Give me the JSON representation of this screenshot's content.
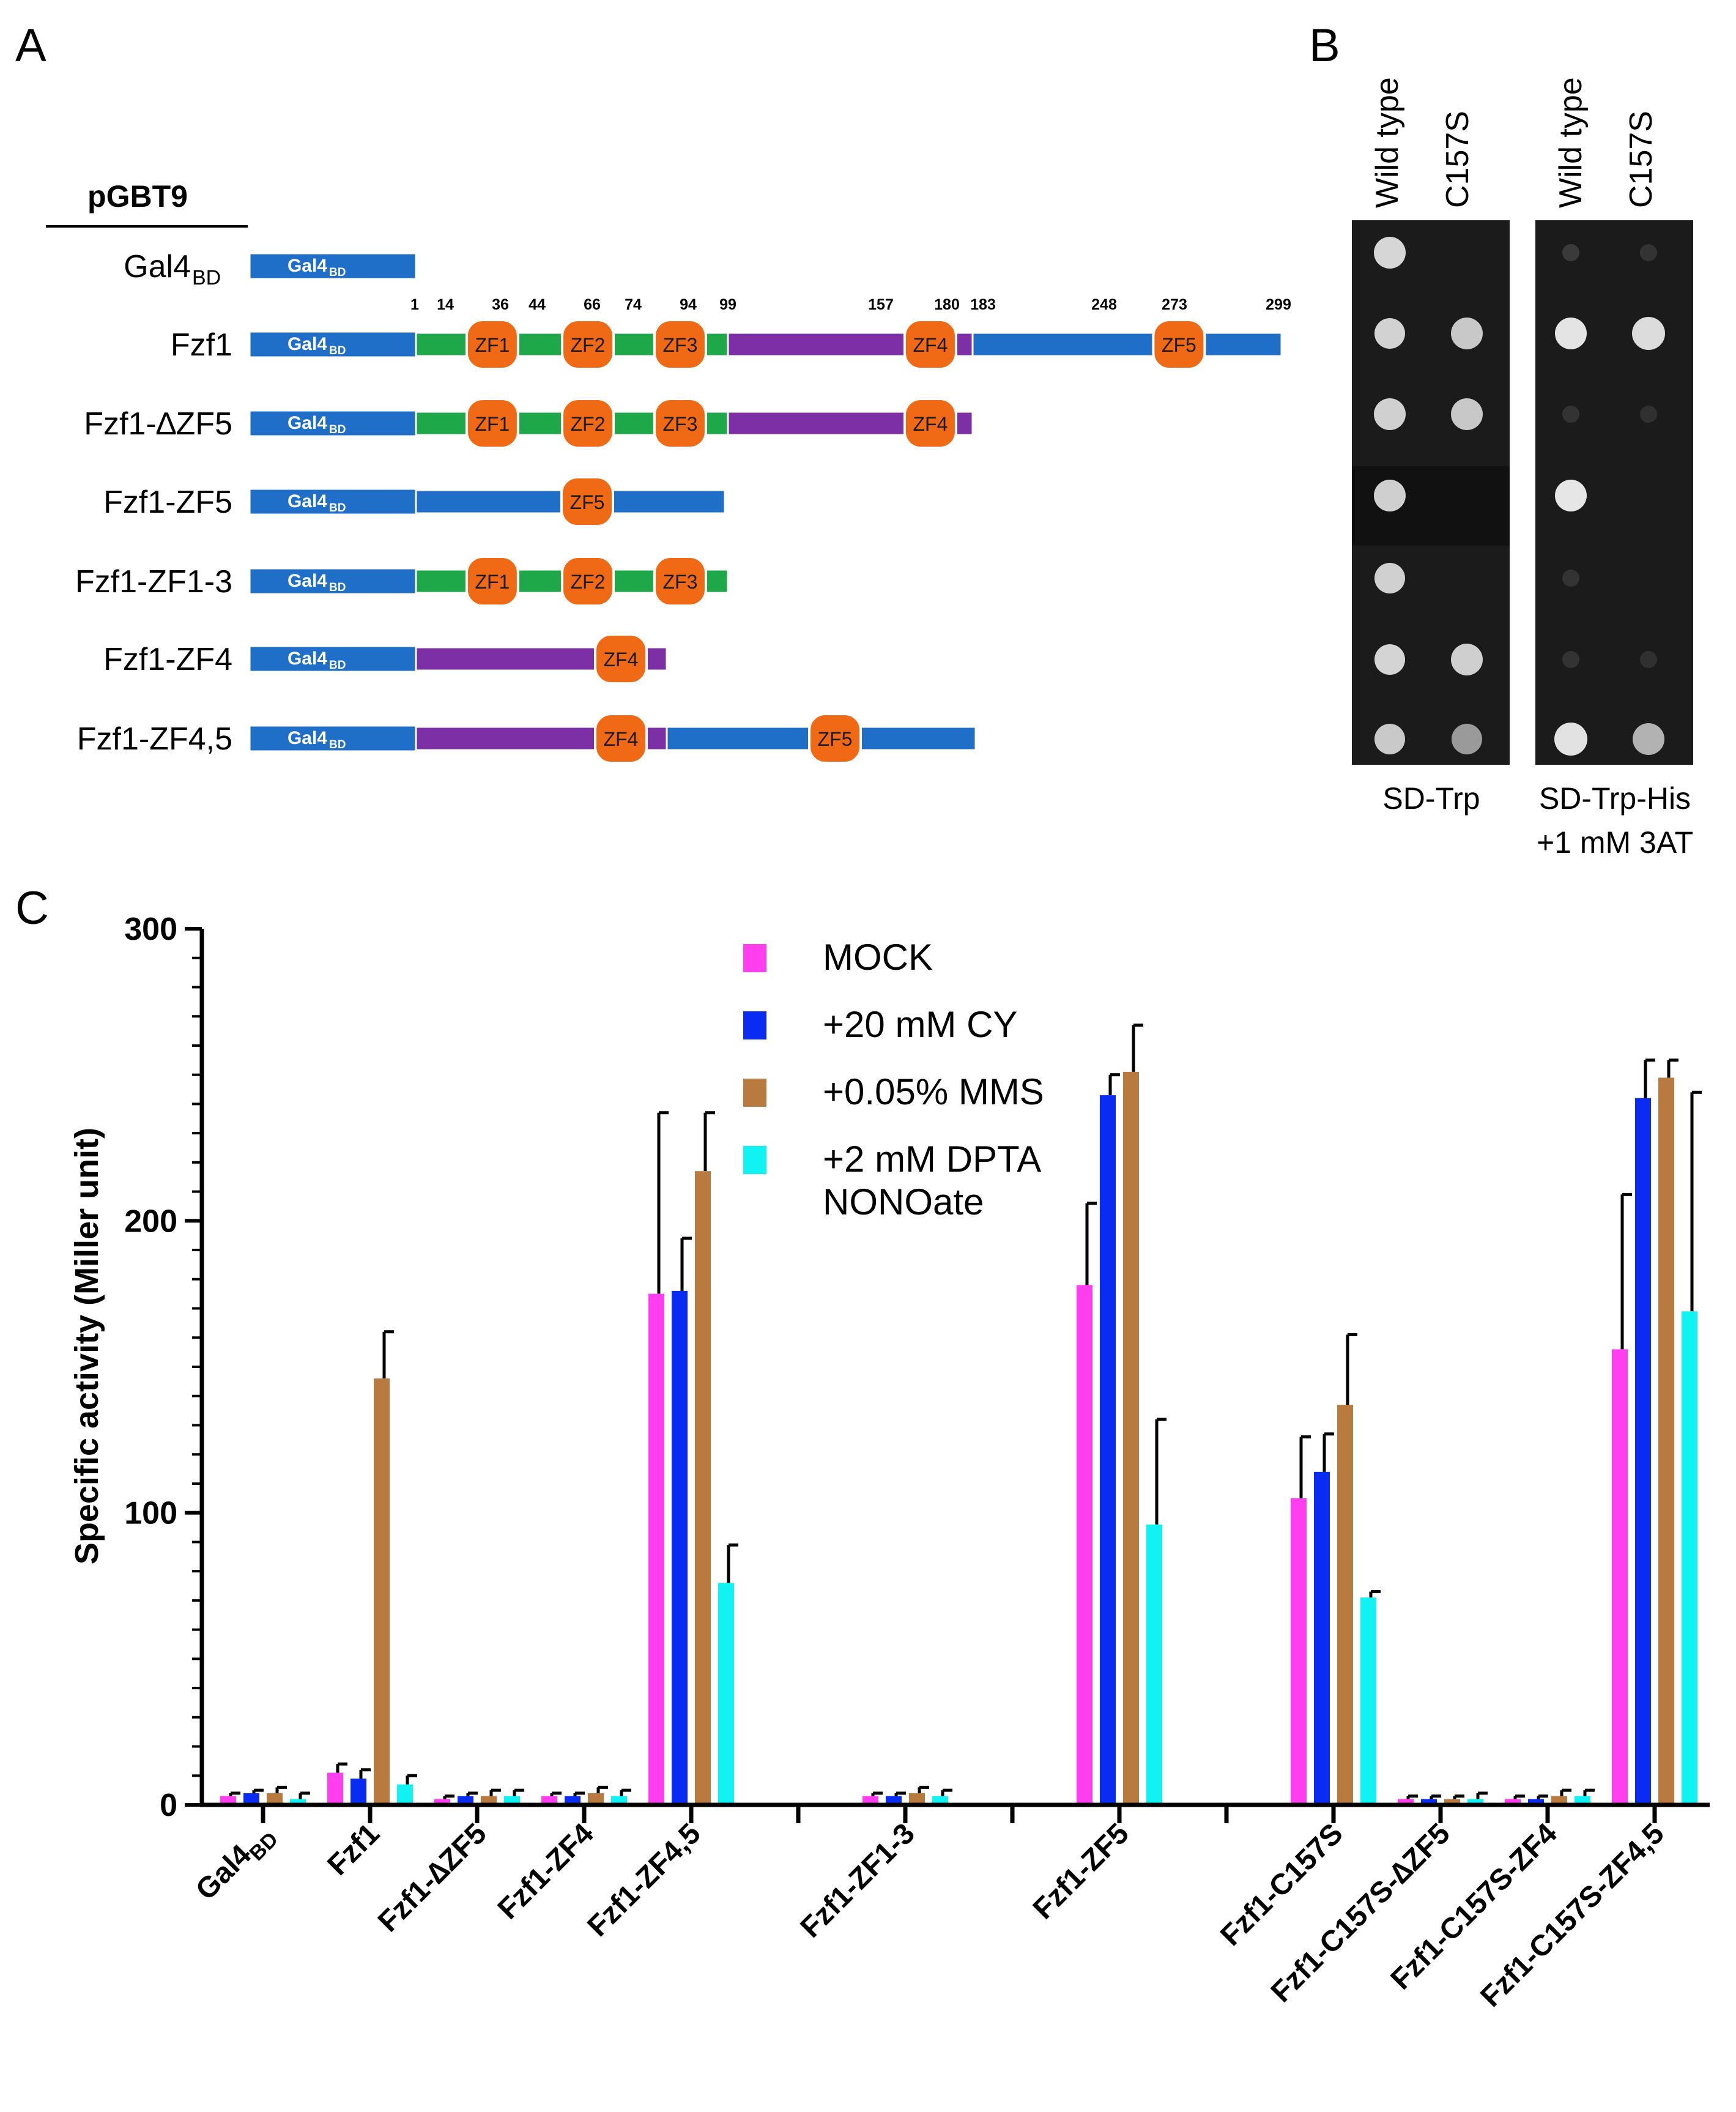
{
  "panel_a": {
    "label": "A",
    "header": "pGBT9",
    "gal_text": "Gal4",
    "gal_sub": "BD",
    "positions": [
      "1",
      "14",
      "36",
      "44",
      "66",
      "74",
      "94",
      "99",
      "157",
      "180",
      "183",
      "248",
      "273",
      "299"
    ],
    "constructs": [
      {
        "label": "Gal4",
        "sub": "BD"
      },
      {
        "label": "Fzf1",
        "sub": ""
      },
      {
        "label": "Fzf1-∆ZF5",
        "sub": ""
      },
      {
        "label": "Fzf1-ZF5",
        "sub": ""
      },
      {
        "label": "Fzf1-ZF1-3",
        "sub": ""
      },
      {
        "label": "Fzf1-ZF4",
        "sub": ""
      },
      {
        "label": "Fzf1-ZF4,5",
        "sub": ""
      }
    ],
    "zf_labels": [
      "ZF1",
      "ZF2",
      "ZF3",
      "ZF4",
      "ZF5"
    ],
    "colors": {
      "gal": "#1f6fc9",
      "zf1_3_region": "#1fa84a",
      "zf4_region": "#7d2fa6",
      "zf5_region": "#1f6fc9",
      "zf": "#f06a16"
    }
  },
  "panel_b": {
    "label": "B",
    "columns": [
      "Wild type",
      "C157S",
      "Wild type",
      "C157S"
    ],
    "media": [
      {
        "line1": "SD-Trp",
        "line2": ""
      },
      {
        "line1": "SD-Trp-His",
        "line2": "+1 mM 3AT"
      }
    ]
  },
  "chart_data": {
    "panel_label": "C",
    "type": "bar",
    "title": "",
    "ylabel": "Specific activity (Miller unit)",
    "xlabel": "",
    "ylim": [
      0,
      300
    ],
    "yticks": [
      0,
      100,
      200,
      300
    ],
    "categories": [
      {
        "name": "Gal4",
        "sub": "BD"
      },
      {
        "name": "Fzf1",
        "sub": ""
      },
      {
        "name": "Fzf1-∆ZF5",
        "sub": ""
      },
      {
        "name": "Fzf1-ZF4",
        "sub": ""
      },
      {
        "name": "Fzf1-ZF4,5",
        "sub": ""
      },
      {
        "name": "Fzf1-ZF1-3",
        "sub": ""
      },
      {
        "name": "Fzf1-ZF5",
        "sub": ""
      },
      {
        "name": "Fzf1-C157S",
        "sub": ""
      },
      {
        "name": "Fzf1-C157S-∆ZF5",
        "sub": ""
      },
      {
        "name": "Fzf1-C157S-ZF4",
        "sub": ""
      },
      {
        "name": "Fzf1-C157S-ZF4,5",
        "sub": ""
      }
    ],
    "series": [
      {
        "name": "MOCK",
        "color": "#ff3ef0",
        "values": [
          3,
          11,
          2,
          3,
          175,
          3,
          178,
          105,
          2,
          2,
          156
        ],
        "errors": [
          1,
          3,
          1,
          1,
          62,
          1,
          28,
          21,
          1,
          1,
          53
        ]
      },
      {
        "name": "+20 mM CY",
        "color": "#0a2bf2",
        "values": [
          4,
          9,
          3,
          3,
          176,
          3,
          243,
          114,
          2,
          2,
          242
        ],
        "errors": [
          1,
          3,
          1,
          1,
          18,
          1,
          7,
          13,
          1,
          1,
          13
        ]
      },
      {
        "name": "+0.05% MMS",
        "color": "#b87a3e",
        "values": [
          4,
          146,
          3,
          4,
          217,
          4,
          251,
          137,
          2,
          3,
          249
        ],
        "errors": [
          2,
          16,
          2,
          2,
          20,
          2,
          16,
          24,
          1,
          2,
          6
        ]
      },
      {
        "name": "+2 mM DPTA NONOate",
        "color": "#11f2f2",
        "values": [
          2,
          7,
          3,
          3,
          76,
          3,
          96,
          71,
          2,
          3,
          169
        ],
        "errors": [
          2,
          3,
          2,
          2,
          13,
          2,
          36,
          2,
          2,
          2,
          75
        ]
      }
    ],
    "legend": [
      {
        "line1": "MOCK",
        "line2": ""
      },
      {
        "line1": "+20 mM CY",
        "line2": ""
      },
      {
        "line1": "+0.05% MMS",
        "line2": ""
      },
      {
        "line1": "+2 mM DPTA",
        "line2": "NONOate"
      }
    ],
    "legend_position": "top-center"
  }
}
